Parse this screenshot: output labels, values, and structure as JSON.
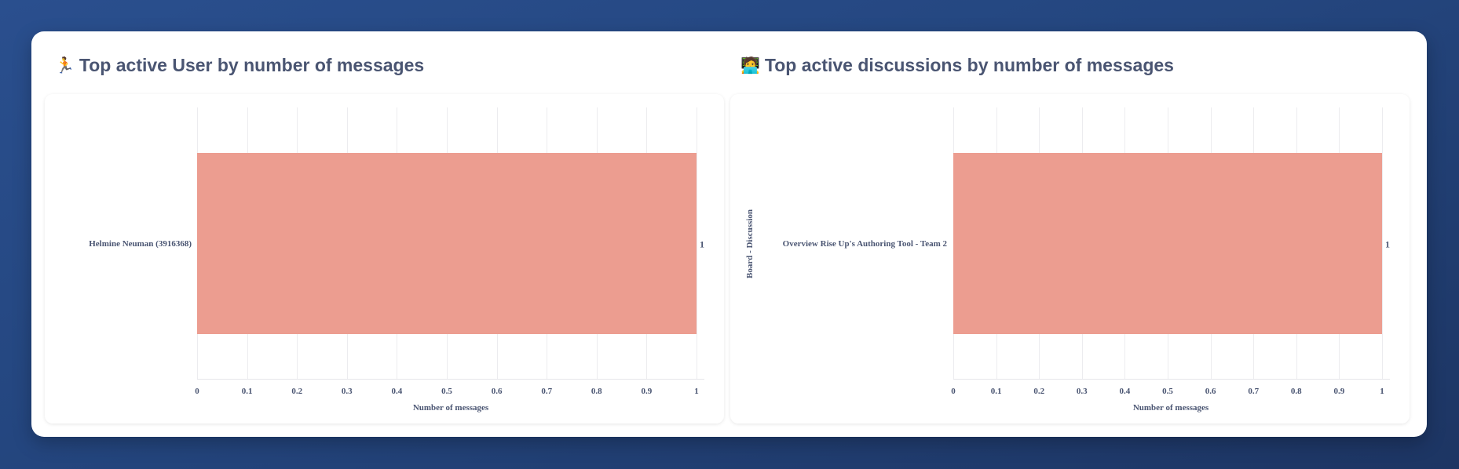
{
  "sections": [
    {
      "title": "Top active User by number of messages",
      "emoji": "🏃",
      "emoji_icon": "person-running-icon"
    },
    {
      "title": "Top active discussions by number of messages",
      "emoji": "🧑‍💻",
      "emoji_icon": "technologist-icon"
    }
  ],
  "colors": {
    "bar": "#ec9d90",
    "text": "#4a5572",
    "grid": "#ececef",
    "background_top": "#2a4f8e",
    "background_bottom": "#1d3563"
  },
  "chart_data": [
    {
      "type": "bar",
      "orientation": "horizontal",
      "title": "Top active User by number of messages",
      "categories": [
        "Helmine Neuman (3916368)"
      ],
      "values": [
        1
      ],
      "value_labels": [
        "1"
      ],
      "xlabel": "Number of messages",
      "ylabel": "",
      "xlim": [
        0,
        1
      ],
      "xticks": [
        "0",
        "0.1",
        "0.2",
        "0.3",
        "0.4",
        "0.5",
        "0.6",
        "0.7",
        "0.8",
        "0.9",
        "1"
      ],
      "grid": true,
      "legend": null
    },
    {
      "type": "bar",
      "orientation": "horizontal",
      "title": "Top active discussions by number of messages",
      "categories": [
        "Overview Rise Up's Authoring Tool - Team 2"
      ],
      "values": [
        1
      ],
      "value_labels": [
        "1"
      ],
      "xlabel": "Number of messages",
      "ylabel": "Board - Discussion",
      "xlim": [
        0,
        1
      ],
      "xticks": [
        "0",
        "0.1",
        "0.2",
        "0.3",
        "0.4",
        "0.5",
        "0.6",
        "0.7",
        "0.8",
        "0.9",
        "1"
      ],
      "grid": true,
      "legend": null
    }
  ]
}
